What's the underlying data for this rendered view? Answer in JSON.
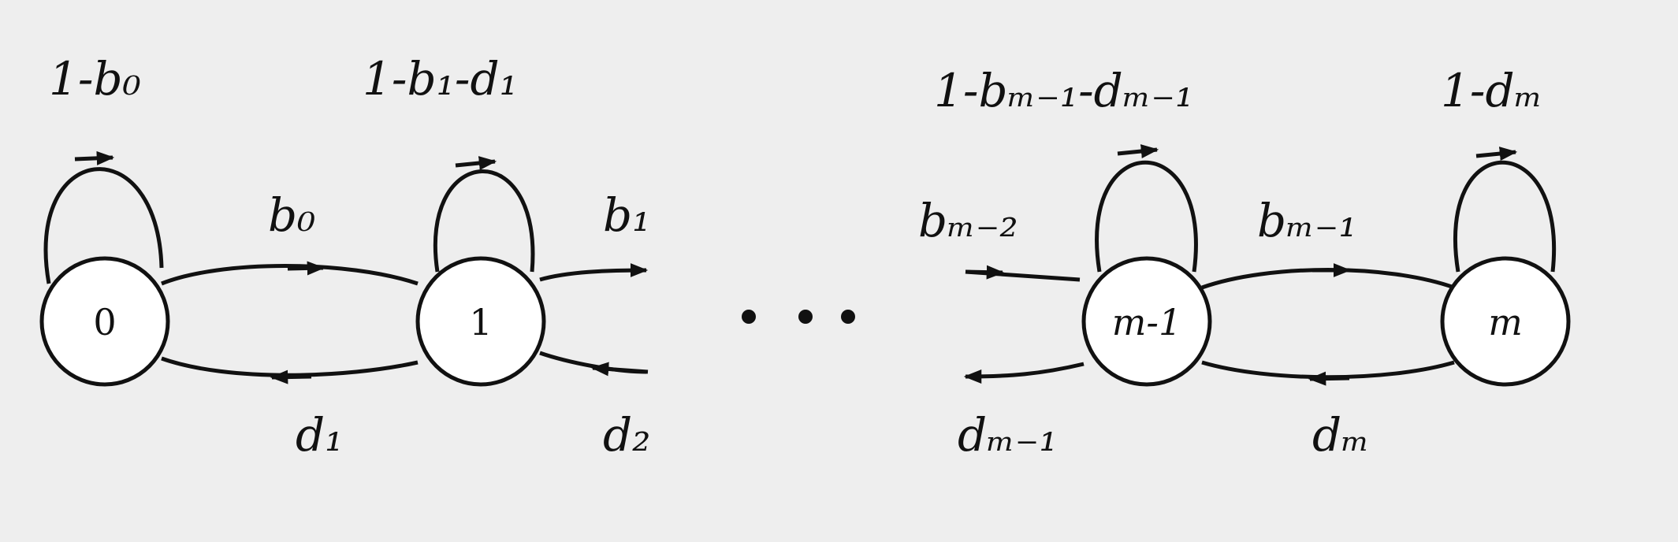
{
  "diagram": {
    "states": [
      {
        "id": "s0",
        "label": "0"
      },
      {
        "id": "s1",
        "label": "1"
      },
      {
        "id": "sm1",
        "label": "m-1"
      },
      {
        "id": "sm",
        "label": "m"
      }
    ],
    "self_loops": [
      {
        "state": "0",
        "label": "1-b₀"
      },
      {
        "state": "1",
        "label": "1-b₁-d₁"
      },
      {
        "state": "m-1",
        "label": "1-bₘ₋₁-dₘ₋₁"
      },
      {
        "state": "m",
        "label": "1-dₘ"
      }
    ],
    "forward_labels": {
      "b0": "b₀",
      "b1": "b₁",
      "bm2": "bₘ₋₂",
      "bm1": "bₘ₋₁"
    },
    "backward_labels": {
      "d1": "d₁",
      "d2": "d₂",
      "dm1": "dₘ₋₁",
      "dm": "dₘ"
    },
    "ellipsis": "…"
  }
}
